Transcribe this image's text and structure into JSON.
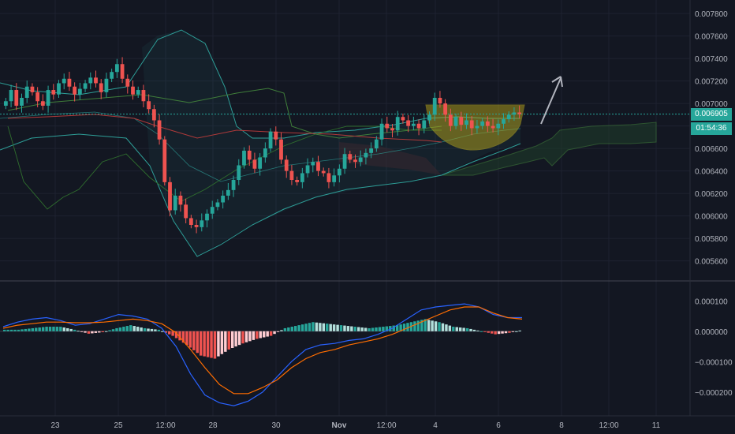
{
  "current_price_label": "0.006905",
  "countdown_label": "01:54:36",
  "chart_data": [
    {
      "type": "candlestick",
      "panel": "price",
      "price_axis_ticks": [
        "0.007800",
        "0.007600",
        "0.007400",
        "0.007200",
        "0.007000",
        "0.006800",
        "0.006600",
        "0.006400",
        "0.006200",
        "0.006000",
        "0.005800",
        "0.005600"
      ],
      "price_tick_values": [
        0.0078,
        0.0076,
        0.0074,
        0.0072,
        0.007,
        0.0068,
        0.0066,
        0.0064,
        0.0062,
        0.006,
        0.0058,
        0.0056
      ],
      "ylim": [
        0.00552,
        0.00785
      ],
      "time_axis_labels": [
        "23",
        "25",
        "12:00",
        "28",
        "30",
        "Nov",
        "12:00",
        "4",
        "6",
        "8",
        "12:00",
        "11"
      ],
      "current_price": 0.006905,
      "colors": {
        "up": "#26a69a",
        "down": "#ef5350",
        "bb_band": "#2e9f98",
        "ichimoku_green": "#3f7d3a",
        "ichimoku_red": "#b03a3a",
        "cup": "#b5a31a",
        "arrow": "#b2b5be",
        "grid": "#1e2230"
      },
      "series": [
        {
          "close": [
            0.00702,
            0.00712,
            0.00698,
            0.00705,
            0.00715,
            0.0071,
            0.00702,
            0.00698,
            0.00712,
            0.00708,
            0.00718,
            0.00722,
            0.00715,
            0.00708,
            0.00713,
            0.00718,
            0.00723,
            0.00718,
            0.0071,
            0.00722,
            0.00728,
            0.00735,
            0.00722,
            0.00715,
            0.00708,
            0.00712,
            0.00702,
            0.00695,
            0.00685,
            0.00668,
            0.0063,
            0.00605,
            0.00618,
            0.0061,
            0.00598,
            0.00592,
            0.0059,
            0.00596,
            0.00602,
            0.00608,
            0.00612,
            0.00618,
            0.00623,
            0.00632,
            0.00645,
            0.00658,
            0.0065,
            0.00642,
            0.00652,
            0.0066,
            0.00675,
            0.00668,
            0.0065,
            0.0064,
            0.00632,
            0.0063,
            0.00638,
            0.00645,
            0.00648,
            0.0064,
            0.00638,
            0.0063,
            0.00636,
            0.00642,
            0.00655,
            0.0065,
            0.00648,
            0.00652,
            0.00656,
            0.0066,
            0.00668,
            0.00682,
            0.00678,
            0.00676,
            0.00688,
            0.00685,
            0.0068,
            0.00682,
            0.00678,
            0.00685,
            0.0069,
            0.00705,
            0.007,
            0.0069,
            0.0068,
            0.00688,
            0.00681,
            0.00685,
            0.00678,
            0.0068,
            0.00684,
            0.0068,
            0.00678,
            0.00682,
            0.00686,
            0.0069,
            0.00692,
            0.006905
          ]
        }
      ]
    },
    {
      "type": "macd",
      "panel": "oscillator",
      "axis_ticks": [
        "0.000100",
        "0.000000",
        "−0.000100",
        "−0.000200"
      ],
      "axis_tick_values": [
        0.0001,
        0.0,
        -0.0001,
        -0.0002
      ],
      "ylim": [
        -0.00026,
        0.00015
      ],
      "colors": {
        "macd": "#2962ff",
        "signal": "#ff6d00",
        "hist_up_strong": "#26a69a",
        "hist_up_weak": "#b2dfdb",
        "hist_down_strong": "#ef5350",
        "hist_down_weak": "#ffcdd2"
      },
      "series": [
        {
          "name": "macd",
          "values": [
            1.5e-05,
            3e-05,
            4e-05,
            4.5e-05,
            3.5e-05,
            2e-05,
            2.5e-05,
            4e-05,
            5.5e-05,
            5e-05,
            4e-05,
            1e-05,
            -5e-05,
            -0.00014,
            -0.00021,
            -0.000235,
            -0.000245,
            -0.00023,
            -0.0002,
            -0.00015,
            -0.0001,
            -6e-05,
            -4.5e-05,
            -4e-05,
            -3e-05,
            -2.5e-05,
            -1e-05,
            1e-05,
            4e-05,
            7e-05,
            8e-05,
            8.5e-05,
            9e-05,
            8e-05,
            5.5e-05,
            4.5e-05,
            4.5e-05
          ]
        },
        {
          "name": "signal",
          "values": [
            1e-05,
            2e-05,
            2.5e-05,
            3e-05,
            3e-05,
            2.8e-05,
            2.8e-05,
            3e-05,
            3.5e-05,
            4e-05,
            3.5e-05,
            2.5e-05,
            -5e-06,
            -6e-05,
            -0.00012,
            -0.000175,
            -0.000205,
            -0.000205,
            -0.000185,
            -0.00016,
            -0.00012,
            -9e-05,
            -7e-05,
            -6e-05,
            -4.5e-05,
            -3.5e-05,
            -2.5e-05,
            -1e-05,
            1e-05,
            3e-05,
            5e-05,
            7e-05,
            8e-05,
            8e-05,
            6e-05,
            4.5e-05,
            4e-05
          ]
        },
        {
          "name": "histogram",
          "values": [
            5e-06,
            1e-05,
            1.5e-05,
            1.5e-05,
            5e-06,
            -8e-06,
            -3e-06,
            1e-05,
            2e-05,
            1e-05,
            5e-06,
            -1.5e-05,
            -4.5e-05,
            -8e-05,
            -9e-05,
            -6e-05,
            -4e-05,
            -2.5e-05,
            -1.5e-05,
            1e-05,
            2e-05,
            3e-05,
            2.5e-05,
            2e-05,
            1.5e-05,
            1e-05,
            1.5e-05,
            2e-05,
            3e-05,
            4e-05,
            3e-05,
            1.5e-05,
            1e-05,
            0.0,
            -1e-05,
            -5e-06,
            5e-06
          ]
        }
      ]
    }
  ]
}
